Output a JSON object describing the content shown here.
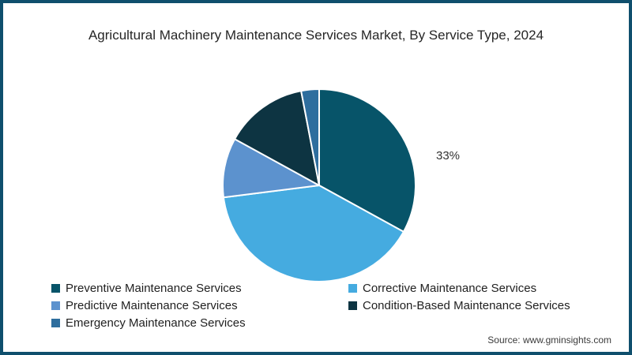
{
  "title": "Agricultural Machinery Maintenance Services Market, By Service Type, 2024",
  "source": "Source: www.gminsights.com",
  "annotation": {
    "text": "33%"
  },
  "colors": {
    "border": "#0f4f6d",
    "background": "#ffffff",
    "title_text": "#262626",
    "legend_text": "#1f1f1f",
    "annotation_text": "#333333",
    "slice_divider": "#ffffff"
  },
  "chart_data": {
    "type": "pie",
    "title": "Agricultural Machinery Maintenance Services Market, By Service Type, 2024",
    "start_angle_deg": 0,
    "direction": "clockwise",
    "legend_position": "bottom-left-two-columns",
    "data_labels_shown": [
      "Preventive Maintenance Services"
    ],
    "series": [
      {
        "key": "preventive",
        "name": "Preventive Maintenance Services",
        "value": 33,
        "color": "#075469",
        "label": "33%"
      },
      {
        "key": "corrective",
        "name": "Corrective Maintenance Services",
        "value": 40,
        "color": "#45abe0"
      },
      {
        "key": "predictive",
        "name": "Predictive Maintenance Services",
        "value": 10,
        "color": "#5c92ce"
      },
      {
        "key": "condition-based",
        "name": "Condition-Based Maintenance Services",
        "value": 14,
        "color": "#0d3442"
      },
      {
        "key": "emergency",
        "name": "Emergency Maintenance Services",
        "value": 3,
        "color": "#2e6e9e"
      }
    ]
  }
}
